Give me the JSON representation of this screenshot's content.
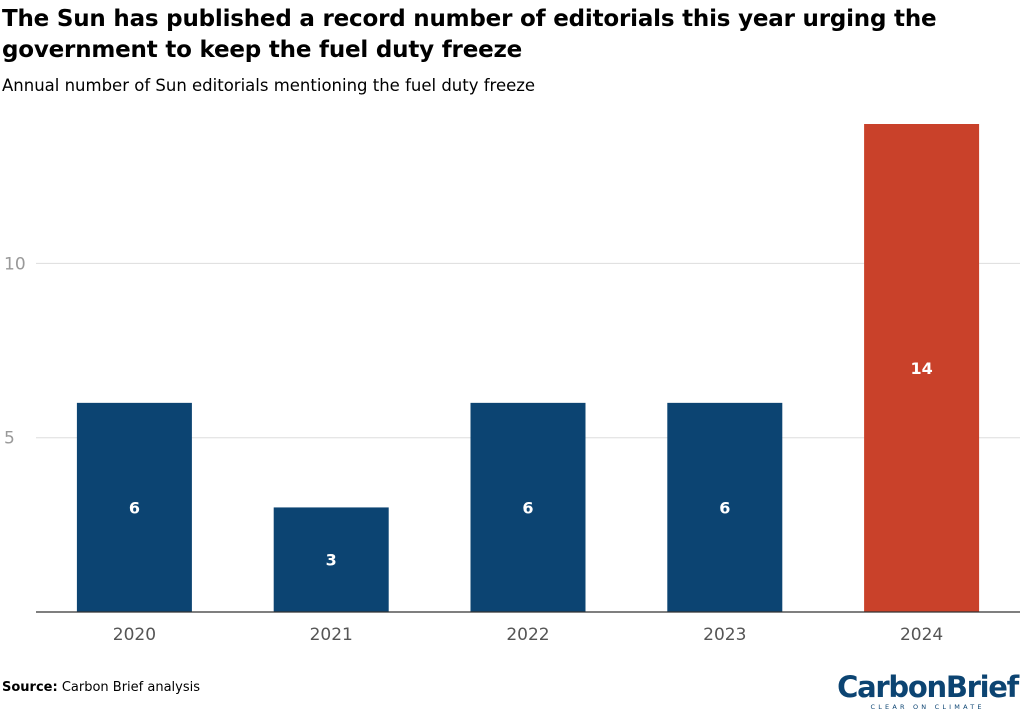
{
  "header": {
    "title": "The Sun has published a record number of editorials this year urging the government to keep the fuel duty freeze",
    "subtitle": "Annual number of Sun editorials mentioning the fuel duty freeze"
  },
  "footer": {
    "source_label": "Source:",
    "source_text": "Carbon Brief analysis"
  },
  "logo": {
    "wordmark": "CarbonBrief",
    "tagline": "CLEAR ON CLIMATE",
    "color": "#0c4472"
  },
  "colors": {
    "default_bar": "#0c4472",
    "highlight_bar": "#c9412a",
    "gridline": "#dddddd",
    "axis_line": "#333333",
    "tick_text": "#555555",
    "value_label": "#ffffff"
  },
  "chart_data": {
    "type": "bar",
    "categories": [
      "2020",
      "2021",
      "2022",
      "2023",
      "2024"
    ],
    "values": [
      6,
      3,
      6,
      6,
      14
    ],
    "value_labels": [
      "6",
      "3",
      "6",
      "6",
      "14"
    ],
    "highlight": [
      false,
      false,
      false,
      false,
      true
    ],
    "title": "The Sun has published a record number of editorials this year urging the government to keep the fuel duty freeze",
    "subtitle": "Annual number of Sun editorials mentioning the fuel duty freeze",
    "xlabel": "",
    "ylabel": "",
    "ylim": [
      0,
      15
    ],
    "yticks": [
      5,
      10
    ],
    "grid": true,
    "legend": "none"
  }
}
